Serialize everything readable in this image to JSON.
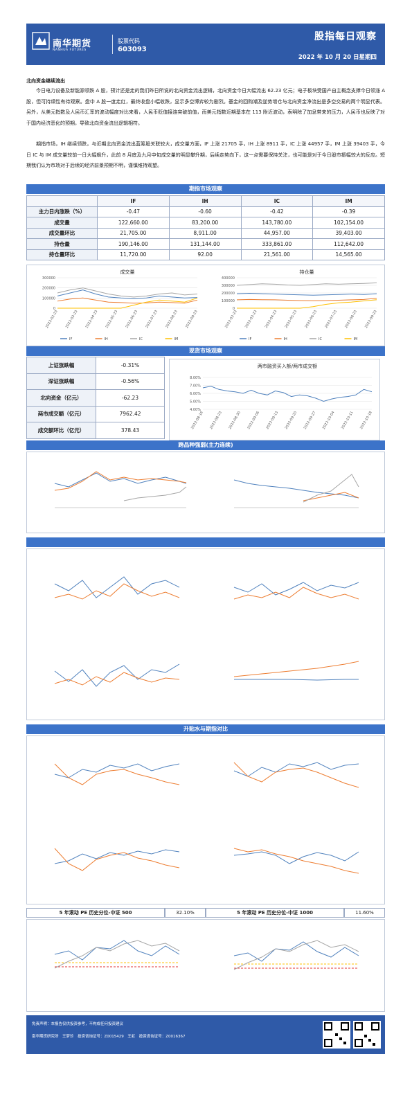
{
  "header": {
    "brand": "南华期货",
    "brand_en": "NANHUA FUTURES",
    "code_label": "股票代码",
    "code": "603093",
    "title": "股指每日观察",
    "date": "2022 年 10 月 20 日星期四"
  },
  "intro": {
    "section_title": "北向资金继续流出",
    "p1": "今日电力设备及新能源领跌 A 股，预计还是走的我们昨日所说的北向资金流出逻辑，北向资金今日大幅流出 62.23 亿元；电子板块受国产自主概念支撑今日领涨 A 股，但可持续性有待观察。盘中 A 股一度走红，最终收盘小幅收跌，显示多空博弈较为剧烈。基金的回购潮及逆势增仓与北向资金净流出是多空交易的两个明显代表。另外，从美元指数及人民币汇率的波动幅度对比来看，人民币贬值接连突破前值，而美元指数近期基本在 113 附近波动，表明除了加息带来的压力，人民币也反映了对于国内经济恶化的预期，导致北向资金流出逻辑相符。",
    "p2": "期指市场，IH 继续领跌，与近期北向资金流出蓝筹股关联较大，成交量方面，IF 上涨 21705 手，IH 上涨 8911 手，IC 上涨 44957 手，IM 上涨 39403 手，今日 IC 与 IM 成交量较前一日大幅飙升，此前 8 月底及九月中旬成交量的明显攀升期，后续走势向下，这一点需要保持关注，也可能是对于今日股市振幅较大的反应。短期我们认为市场对于后续的经济前景预期不明，谨慎维持观望。"
  },
  "futures": {
    "banner": "期指市场观察",
    "columns": [
      "IF",
      "IH",
      "IC",
      "IM"
    ],
    "rows": [
      {
        "label": "主力日内涨跌（%）",
        "values": [
          "-0.47",
          "-0.60",
          "-0.42",
          "-0.39"
        ]
      },
      {
        "label": "成交量",
        "values": [
          "122,660.00",
          "83,200.00",
          "143,780.00",
          "102,154.00"
        ]
      },
      {
        "label": "成交量环比",
        "values": [
          "21,705.00",
          "8,911.00",
          "44,957.00",
          "39,403.00"
        ]
      },
      {
        "label": "持仓量",
        "values": [
          "190,146.00",
          "131,144.00",
          "333,861.00",
          "112,642.00"
        ]
      },
      {
        "label": "持仓量环比",
        "values": [
          "11,720.00",
          "92.00",
          "21,561.00",
          "14,565.00"
        ]
      }
    ]
  },
  "spot": {
    "banner": "现货市场观察",
    "rows": [
      {
        "label": "上证涨跌幅",
        "value": "-0.31%"
      },
      {
        "label": "深证涨跌幅",
        "value": "-0.56%"
      },
      {
        "label": "北向资金（亿元）",
        "value": "-62.23"
      },
      {
        "label": "两市成交额（亿元）",
        "value": "7962.42"
      },
      {
        "label": "成交额环比（亿元）",
        "value": "378.43"
      }
    ]
  },
  "cross_banner": "跨品种强弱(主力连续)",
  "basis_banner": "升贴水与期指对比",
  "pe": {
    "left_label": "5 年滚动 PE 历史分位-中证 500",
    "left_value": "32.10%",
    "right_label": "5 年滚动 PE 历史分位-中证 1000",
    "right_value": "11.60%"
  },
  "footer": {
    "line1": "免责声明：本报告仅供投资参考，不构成任何投资建议",
    "line2": "南华期货研究所　王梦珍　投资咨询证号：Z0015429　王虹　投资咨询证号：Z0016367"
  },
  "colors": {
    "blue": "#4f81bd",
    "orange": "#ed7d31",
    "gray": "#a5a5a5",
    "yellow": "#ffc000",
    "banner": "#3c73c9",
    "header": "#2f5aa8"
  },
  "chart_data": [
    {
      "type": "line",
      "title": "成交量",
      "x_ticks": [
        "2022-02-23",
        "2022-03-23",
        "2022-04-23",
        "2022-05-23",
        "2022-06-23",
        "2022-07-23",
        "2022-08-23",
        "2022-09-23"
      ],
      "y_ticks": [
        "0",
        "100000",
        "200000",
        "300000"
      ],
      "ylim": [
        0,
        300000
      ],
      "series": [
        {
          "name": "IF",
          "color": "#4f81bd",
          "values": [
            120000,
            150000,
            180000,
            140000,
            110000,
            100000,
            95000,
            100000,
            120000,
            110000,
            100000,
            105000
          ]
        },
        {
          "name": "IH",
          "color": "#ed7d31",
          "values": [
            70000,
            90000,
            100000,
            80000,
            60000,
            55000,
            50000,
            52000,
            60000,
            55000,
            50000,
            80000
          ]
        },
        {
          "name": "IC",
          "color": "#a5a5a5",
          "values": [
            150000,
            180000,
            200000,
            170000,
            140000,
            120000,
            110000,
            120000,
            140000,
            150000,
            130000,
            140000
          ]
        },
        {
          "name": "IM",
          "color": "#ffc000",
          "values": [
            0,
            0,
            0,
            0,
            0,
            0,
            30000,
            60000,
            80000,
            70000,
            60000,
            100000
          ]
        }
      ]
    },
    {
      "type": "line",
      "title": "持仓量",
      "x_ticks": [
        "2022-02-23",
        "2022-03-23",
        "2022-04-23",
        "2022-05-23",
        "2022-06-23",
        "2022-07-23",
        "2022-08-23",
        "2022-09-23"
      ],
      "y_ticks": [
        "0",
        "100000",
        "200000",
        "300000",
        "400000"
      ],
      "ylim": [
        0,
        400000
      ],
      "series": [
        {
          "name": "IF",
          "color": "#4f81bd",
          "values": [
            190000,
            195000,
            190000,
            185000,
            180000,
            175000,
            170000,
            175000,
            180000,
            185000,
            180000,
            190000
          ]
        },
        {
          "name": "IH",
          "color": "#ed7d31",
          "values": [
            110000,
            115000,
            112000,
            110000,
            105000,
            100000,
            98000,
            100000,
            105000,
            110000,
            115000,
            131000
          ]
        },
        {
          "name": "IC",
          "color": "#a5a5a5",
          "values": [
            300000,
            310000,
            320000,
            315000,
            305000,
            300000,
            310000,
            320000,
            315000,
            320000,
            325000,
            333000
          ]
        },
        {
          "name": "IM",
          "color": "#ffc000",
          "values": [
            0,
            0,
            0,
            0,
            0,
            0,
            20000,
            50000,
            70000,
            80000,
            95000,
            112000
          ]
        }
      ]
    },
    {
      "type": "line",
      "title": "两市融资买入额/两市成交额",
      "x_ticks": [
        "2022-08-16",
        "2022-08-23",
        "2022-08-30",
        "2022-09-06",
        "2022-09-13",
        "2022-09-20",
        "2022-09-27",
        "2022-10-04",
        "2022-10-11",
        "2022-10-18"
      ],
      "y_ticks": [
        "4.00%",
        "5.00%",
        "6.00%",
        "7.00%",
        "8.00%"
      ],
      "ylim": [
        4,
        8
      ],
      "series": [
        {
          "name": "",
          "color": "#4f81bd",
          "values": [
            6.7,
            6.9,
            6.5,
            6.3,
            6.2,
            6.0,
            6.4,
            6.0,
            5.8,
            6.3,
            6.1,
            5.6,
            5.8,
            5.7,
            5.4,
            5.0,
            5.3,
            5.5,
            5.6,
            5.8,
            6.5,
            6.2
          ]
        }
      ]
    }
  ]
}
